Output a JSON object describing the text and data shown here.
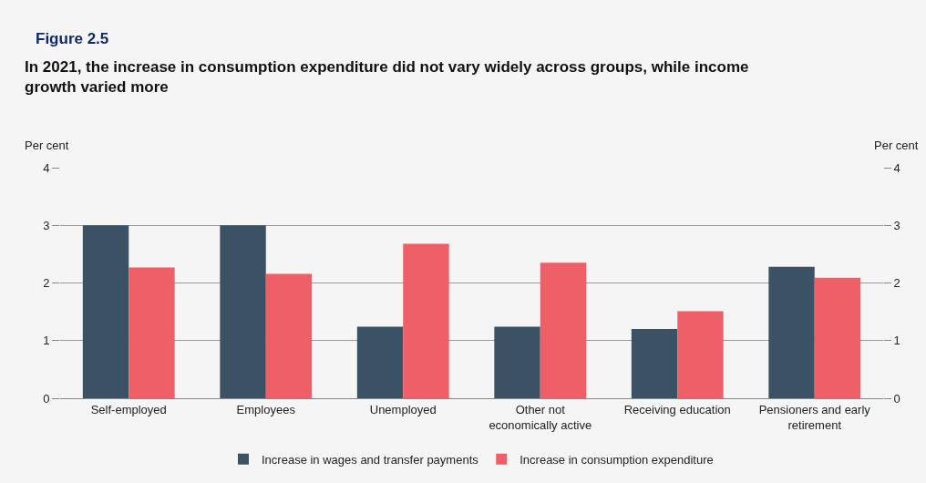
{
  "chart_data": {
    "type": "bar",
    "title": "Figure 2.5",
    "subtitle": "In 2021, the increase in consumption expenditure did not vary widely across groups, while income growth varied more",
    "ylabel": "Per cent",
    "y2label": "Per cent",
    "categories": [
      "Self-employed",
      "Employees",
      "Unemployed",
      "Other not economically active",
      "Receiving education",
      "Pensioners and early retirement"
    ],
    "series": [
      {
        "name": "Increase in wages and transfer payments",
        "color": "#3b5264",
        "values": [
          3.0,
          3.0,
          1.24,
          1.24,
          1.2,
          2.28
        ]
      },
      {
        "name": "Increase in consumption expenditure",
        "color": "#ee5f68",
        "values": [
          2.27,
          2.16,
          2.68,
          2.35,
          1.51,
          2.09
        ]
      }
    ],
    "ylim": [
      0,
      4
    ],
    "yticks": [
      0,
      1,
      2,
      3,
      4
    ],
    "y2lim": [
      0,
      4
    ],
    "y2ticks": [
      0,
      1,
      2,
      3,
      4
    ],
    "grid": "y",
    "legend": "bottom"
  }
}
